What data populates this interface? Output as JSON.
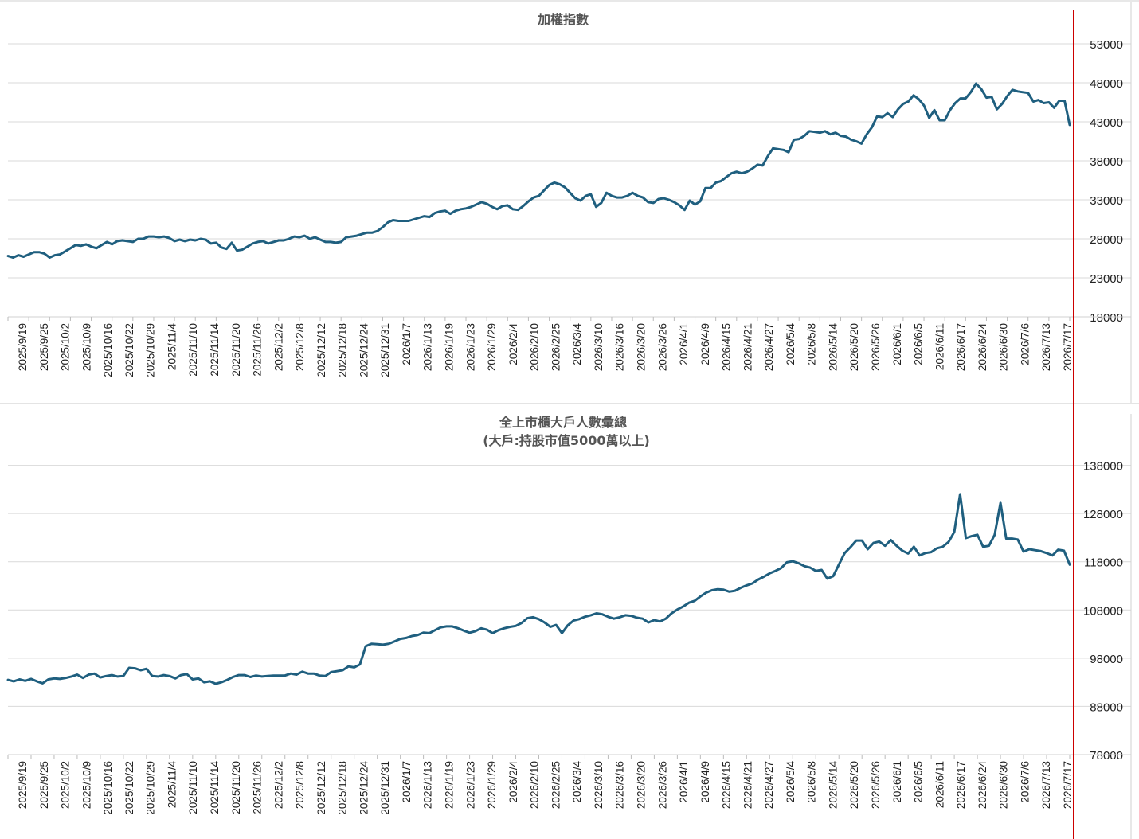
{
  "colors": {
    "line": "#1f5f7f",
    "marker": "#cc0000",
    "grid": "#d9d9d9"
  },
  "chart_data": [
    {
      "type": "line",
      "title": "加權指數",
      "subtitle": "",
      "ylim": [
        18000,
        58000
      ],
      "yticks": [
        18000,
        23000,
        28000,
        33000,
        38000,
        43000,
        48000,
        53000
      ],
      "grid": true,
      "xtick_labels": [
        "2025/9/19",
        "2025/9/25",
        "2025/10/2",
        "2025/10/9",
        "2025/10/16",
        "2025/10/22",
        "2025/10/29",
        "2025/11/4",
        "2025/11/10",
        "2025/11/14",
        "2025/11/20",
        "2025/11/26",
        "2025/12/2",
        "2025/12/8",
        "2025/12/12",
        "2025/12/18",
        "2025/12/24",
        "2025/12/31",
        "2026/1/7",
        "2026/1/13",
        "2026/1/19",
        "2026/1/23",
        "2026/1/29",
        "2026/2/4",
        "2026/2/10",
        "2026/2/25",
        "2026/3/4",
        "2026/3/10",
        "2026/3/16",
        "2026/3/20",
        "2026/3/26",
        "2026/4/1",
        "2026/4/9",
        "2026/4/15",
        "2026/4/21",
        "2026/4/27",
        "2026/5/4",
        "2026/5/8",
        "2026/5/14",
        "2026/5/20",
        "2026/5/26",
        "2026/6/1",
        "2026/6/5",
        "2026/6/11",
        "2026/6/17",
        "2026/6/24",
        "2026/6/30",
        "2026/7/6",
        "2026/7/13",
        "2026/7/17"
      ],
      "series": [
        {
          "values": [
            25800,
            25600,
            25900,
            25700,
            26000,
            26300,
            26300,
            26100,
            25600,
            25900,
            26000,
            26400,
            26800,
            27200,
            27100,
            27300,
            27000,
            26800,
            27200,
            27600,
            27300,
            27700,
            27800,
            27700,
            27600,
            28000,
            28000,
            28300,
            28300,
            28200,
            28300,
            28100,
            27700,
            27900,
            27700,
            27900,
            27800,
            28000,
            27900,
            27400,
            27500,
            26900,
            26700,
            27500,
            26500,
            26600,
            27000,
            27400,
            27600,
            27700,
            27400,
            27600,
            27800,
            27800,
            28000,
            28300,
            28200,
            28400,
            28000,
            28200,
            27900,
            27600,
            27600,
            27500,
            27600,
            28200,
            28300,
            28400,
            28600,
            28800,
            28800,
            29000,
            29500,
            30100,
            30400,
            30300,
            30300,
            30300,
            30500,
            30700,
            30900,
            30800,
            31300,
            31500,
            31600,
            31200,
            31600,
            31800,
            31900,
            32100,
            32400,
            32700,
            32500,
            32100,
            31800,
            32200,
            32300,
            31800,
            31700,
            32200,
            32800,
            33300,
            33500,
            34200,
            34900,
            35200,
            35000,
            34600,
            33900,
            33200,
            32900,
            33500,
            33700,
            32100,
            32600,
            33900,
            33500,
            33300,
            33300,
            33500,
            33900,
            33500,
            33300,
            32700,
            32600,
            33100,
            33200,
            33000,
            32700,
            32300,
            31700,
            32900,
            32400,
            32800,
            34500,
            34500,
            35200,
            35400,
            35900,
            36400,
            36600,
            36400,
            36600,
            37000,
            37500,
            37400,
            38600,
            39600,
            39500,
            39400,
            39100,
            40700,
            40800,
            41200,
            41800,
            41700,
            41600,
            41800,
            41400,
            41600,
            41200,
            41100,
            40700,
            40500,
            40200,
            41400,
            42300,
            43700,
            43600,
            44100,
            43600,
            44600,
            45300,
            45600,
            46400,
            45900,
            45100,
            43500,
            44500,
            43200,
            43200,
            44500,
            45400,
            46000,
            46000,
            46800,
            47900,
            47200,
            46100,
            46200,
            44600,
            45300,
            46300,
            47100,
            46900,
            46800,
            46700,
            45600,
            45800,
            45400,
            45500,
            44800,
            45700,
            45700,
            42600
          ]
        }
      ]
    },
    {
      "type": "line",
      "title": "全上市櫃大戶人數彙總",
      "subtitle": "(大戶:持股市值5000萬以上)",
      "ylim": [
        78000,
        148000
      ],
      "yticks": [
        78000,
        88000,
        98000,
        108000,
        118000,
        128000,
        138000
      ],
      "grid": true,
      "xtick_labels": [
        "2025/9/19",
        "2025/9/25",
        "2025/10/2",
        "2025/10/9",
        "2025/10/16",
        "2025/10/22",
        "2025/10/29",
        "2025/11/4",
        "2025/11/10",
        "2025/11/14",
        "2025/11/20",
        "2025/11/26",
        "2025/12/2",
        "2025/12/8",
        "2025/12/12",
        "2025/12/18",
        "2025/12/24",
        "2025/12/31",
        "2026/1/7",
        "2026/1/13",
        "2026/1/19",
        "2026/1/23",
        "2026/1/29",
        "2026/2/4",
        "2026/2/10",
        "2026/2/25",
        "2026/3/4",
        "2026/3/10",
        "2026/3/16",
        "2026/3/20",
        "2026/3/26",
        "2026/4/1",
        "2026/4/9",
        "2026/4/15",
        "2026/4/21",
        "2026/4/27",
        "2026/5/4",
        "2026/5/8",
        "2026/5/14",
        "2026/5/20",
        "2026/5/26",
        "2026/6/1",
        "2026/6/5",
        "2026/6/11",
        "2026/6/17",
        "2026/6/24",
        "2026/6/30",
        "2026/7/6",
        "2026/7/13",
        "2026/7/17"
      ],
      "series": [
        {
          "values": [
            93500,
            93200,
            93600,
            93300,
            93700,
            93200,
            92800,
            93600,
            93800,
            93700,
            93900,
            94200,
            94600,
            93900,
            94600,
            94800,
            94000,
            94300,
            94500,
            94200,
            94300,
            96000,
            95900,
            95500,
            95800,
            94300,
            94200,
            94500,
            94300,
            93800,
            94500,
            94700,
            93600,
            93800,
            93000,
            93200,
            92700,
            93000,
            93500,
            94100,
            94500,
            94500,
            94100,
            94400,
            94200,
            94300,
            94400,
            94400,
            94400,
            94800,
            94600,
            95200,
            94800,
            94800,
            94400,
            94300,
            95100,
            95300,
            95500,
            96300,
            96100,
            96700,
            100500,
            101000,
            100900,
            100800,
            101000,
            101500,
            102000,
            102200,
            102600,
            102800,
            103300,
            103200,
            103800,
            104400,
            104600,
            104600,
            104200,
            103700,
            103300,
            103600,
            104200,
            103900,
            103200,
            103800,
            104200,
            104500,
            104700,
            105300,
            106300,
            106500,
            106100,
            105400,
            104500,
            104900,
            103200,
            104800,
            105800,
            106100,
            106600,
            106900,
            107300,
            107100,
            106600,
            106200,
            106500,
            106900,
            106800,
            106400,
            106200,
            105400,
            105900,
            105600,
            106200,
            107300,
            108100,
            108700,
            109500,
            109900,
            110800,
            111600,
            112100,
            112300,
            112200,
            111800,
            112000,
            112600,
            113100,
            113500,
            114300,
            114900,
            115600,
            116100,
            116700,
            117900,
            118100,
            117700,
            117100,
            116800,
            116100,
            116300,
            114500,
            115000,
            117400,
            119800,
            121000,
            122400,
            122400,
            120600,
            121900,
            122200,
            121300,
            122500,
            121300,
            120300,
            119700,
            121100,
            119300,
            119800,
            120000,
            120800,
            121100,
            122100,
            124200,
            132000,
            122900,
            123300,
            123600,
            121100,
            121300,
            123600,
            130200,
            122800,
            122800,
            122600,
            120100,
            120600,
            120400,
            120200,
            119800,
            119300,
            120500,
            120300,
            117400
          ]
        }
      ]
    }
  ]
}
